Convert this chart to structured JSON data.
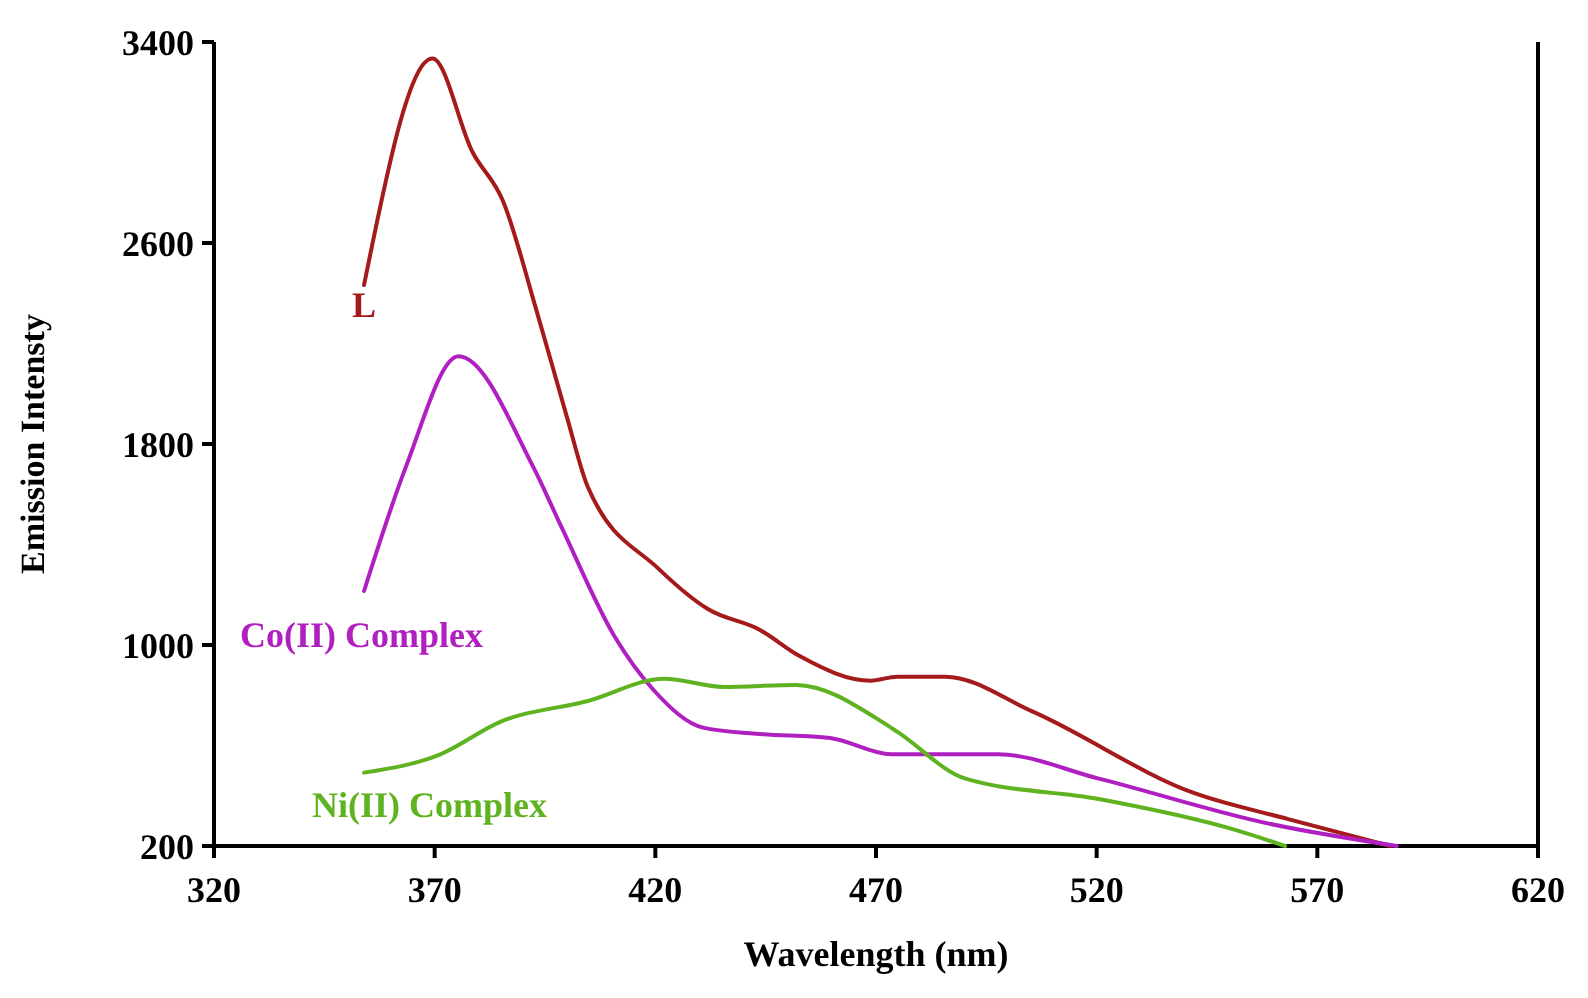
{
  "chart_data": {
    "type": "line",
    "xlabel": "Wavelength (nm)",
    "ylabel": "Emission Intensty",
    "xlim": [
      320,
      620
    ],
    "xticks": [
      320,
      370,
      420,
      470,
      520,
      570,
      620
    ],
    "ylim": [
      200,
      3400
    ],
    "yticks": [
      200,
      1000,
      1800,
      2600,
      3400
    ],
    "marker": "none",
    "line_style": "solid",
    "series": [
      {
        "name": "L",
        "color": "#a51a1a",
        "x": [
          354,
          369.5,
          378.6,
          385.5,
          393,
          400,
          404.7,
          420.7,
          432,
          443.6,
          452.8,
          468.8,
          474.8,
          485.7,
          505.4,
          542,
          563.6,
          586.5
        ],
        "values": [
          2433,
          3334,
          2961,
          2766,
          2336,
          1905,
          1629,
          1304,
          1142,
          1061,
          955,
          858,
          874,
          874,
          736,
          411,
          306,
          200
        ]
      },
      {
        "name": "Co(II) Complex",
        "color": "#b020c0",
        "x": [
          354,
          363.5,
          375.4,
          392.3,
          398.8,
          410.7,
          419.8,
          430.8,
          442.7,
          459.6,
          473.4,
          497.7,
          520.5,
          559,
          588
        ],
        "values": [
          1215,
          1710,
          2149,
          1710,
          1467,
          1036,
          817,
          671,
          647,
          630,
          565,
          565,
          468,
          289,
          200
        ]
      },
      {
        "name": "Ni(II) Complex",
        "color": "#5fb320",
        "x": [
          354,
          371.3,
          385,
          404.7,
          422,
          435.4,
          451.9,
          472,
          474.8,
          490.3,
          520.5,
          551.2,
          562.7
        ],
        "values": [
          492,
          565,
          695,
          777,
          866,
          833,
          841,
          687,
          655,
          468,
          387,
          265,
          200
        ]
      }
    ]
  }
}
